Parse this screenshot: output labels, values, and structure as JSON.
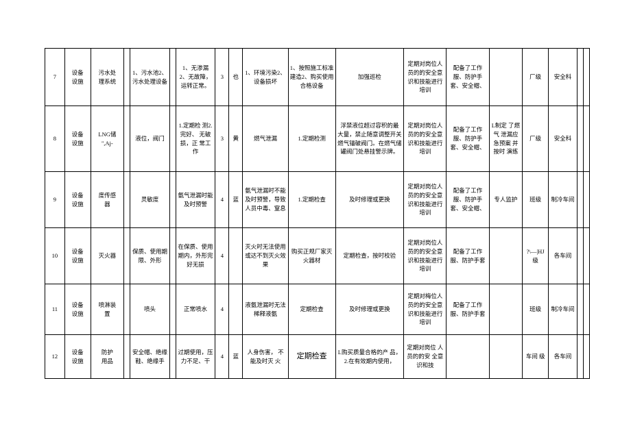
{
  "rows": [
    {
      "idx": "7",
      "category": "设备\n设施",
      "name": "污水处\n理系统",
      "empty1": "",
      "part": "1、污水池2、污水处理设备",
      "empty2": "",
      "standard": "1、无渗漏 2、无故障，运转正常。",
      "num1": "3",
      "level": "也",
      "risk": "1、环境污染2、设备损坏",
      "measure1": "1、按照施工标准建造2、购买使用合格设备",
      "measure2": "加强巡检",
      "train": "定期对岗位人 员的的安全意 识和技能进行 培训",
      "ppe": "配备了工作服、防护手套、安全帽、",
      "plan": "",
      "mgmtLevel": "厂级",
      "dept": "安全科",
      "tail1": "",
      "tail2": ""
    },
    {
      "idx": "8",
      "category": "设备\n设施",
      "name": "LNG储\n'',Aj-",
      "empty1": "",
      "part": "液位，阀门",
      "empty2": "",
      "standard": "1.定期检 测2.完好、 无破损，正 常工作",
      "num1": "3",
      "level": "黄",
      "risk": "燃气泄漏",
      "measure1": "1.定期检测",
      "measure2": "浮禁液位超过容积的最 大量，禁止随意调整开关 燃气锚破阀门。在燃气储罐阀门处悬挂警示牌。",
      "train": "定期对岗位人 员的的安全意 识和技能进行 培训",
      "ppe": "配备了工作服、防护手套、安全帽、",
      "plan": "L制定 了燃气 泄漏应急预案 并按时 演练",
      "mgmtLevel": "厂级",
      "dept": "安全科",
      "tail1": "",
      "tail2": ""
    },
    {
      "idx": "9",
      "category": "设备\n设施",
      "name": "度传感\n器",
      "empty1": "",
      "part": "灵敏度",
      "empty2": "",
      "standard": "氨气泄漏时能及时预警",
      "num1": "4",
      "level": "蓝",
      "risk": "氨气泄漏时不能及时预警，导致人员中毒、窒息",
      "measure1": "1.定期检查",
      "measure2": "及时修理或更换",
      "train": "定期对岗位人 员的的安全意 识和技能进行 培训",
      "ppe": "配备了工作服、防护手套、安全帽、",
      "plan": "专人监护",
      "mgmtLevel": "班级",
      "dept": "制冷车间",
      "tail1": "",
      "tail2": ""
    },
    {
      "idx": "10",
      "category": "设备\n设施",
      "name": "灭火器",
      "empty1": "",
      "part": "保质、使用期限、外形",
      "empty2": "",
      "standard": "在保质、使用期内，外形完好无损",
      "num1": "4",
      "level": "",
      "risk": "灭火时无法使用或达不到灭火效果",
      "measure1": "购买正规厂家灭火器材",
      "measure2": "定期检查，按时校验",
      "train": "定期对岗位人 员的的安全意 识和技能进行 培训",
      "ppe": "配备了工作服、防护手套",
      "plan": "",
      "mgmtLevel": "?\\—|HJ\n级",
      "dept": "各车间",
      "tail1": "",
      "tail2": ""
    },
    {
      "idx": "11",
      "category": "设备\n设施",
      "name": "喷淋装\n置",
      "empty1": "",
      "part": "喷头",
      "empty2": "",
      "standard": "正常喷水",
      "num1": "4",
      "level": "",
      "risk": "液氨泄漏时无法稀释液氨",
      "measure1": "定期检查",
      "measure2": "及时修理或更换",
      "train": "定期对梅位人 员的的安全意 识和技能进行 培训",
      "ppe": "配备了工作服、防护手套",
      "plan": "",
      "mgmtLevel": "班级",
      "dept": "制冷车间",
      "tail1": "",
      "tail2": ""
    },
    {
      "idx": "12",
      "category": "设备\n设施",
      "name": "防护\n用品",
      "empty1": "",
      "part": "安全帽、绝缘鞋、绝缘手",
      "empty2": "",
      "standard": "过期使用，压力不足、干",
      "num1": "4",
      "level": "蓝",
      "risk": "人身伤害， 不能及时灭 火",
      "measure1": "定期检查",
      "measure2": "L购买质量合格的产 品，2.在有效期内使用，",
      "train": "定期对岗位 人员的的安 全意识和技",
      "ppe": "",
      "plan": "",
      "mgmtLevel": "车间 级",
      "dept": "各车间",
      "tail1": "",
      "tail2": ""
    }
  ]
}
